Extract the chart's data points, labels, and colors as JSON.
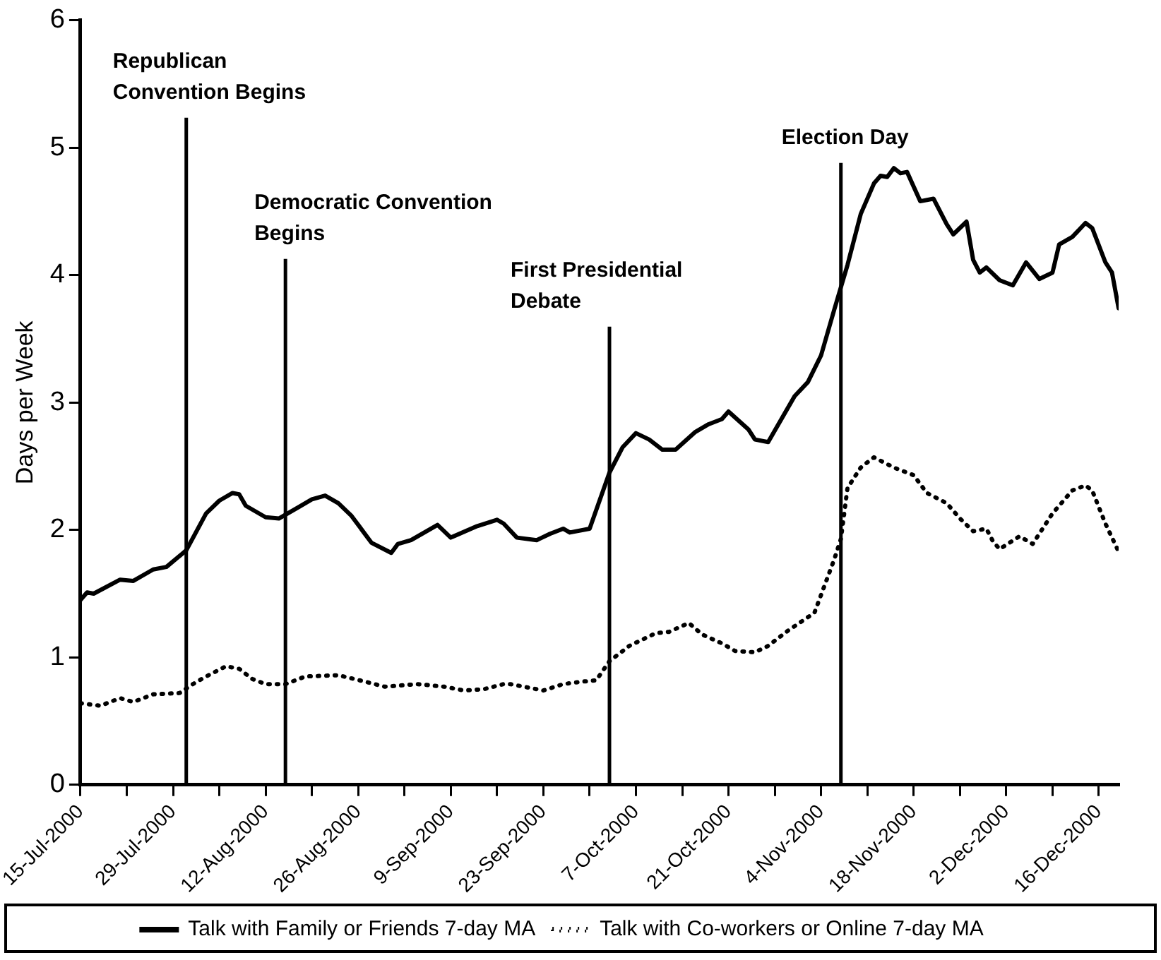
{
  "chart_data": {
    "type": "line",
    "ylabel": "Days per Week",
    "xlim": [
      "2000-07-15",
      "2000-12-19"
    ],
    "ylim": [
      0,
      6
    ],
    "yticks": [
      0,
      1,
      2,
      3,
      4,
      5,
      6
    ],
    "xticks": [
      {
        "value": "2000-07-15",
        "label": "15-Jul-2000"
      },
      {
        "value": "2000-07-22",
        "label": null
      },
      {
        "value": "2000-07-29",
        "label": "29-Jul-2000"
      },
      {
        "value": "2000-08-05",
        "label": null
      },
      {
        "value": "2000-08-12",
        "label": "12-Aug-2000"
      },
      {
        "value": "2000-08-19",
        "label": null
      },
      {
        "value": "2000-08-26",
        "label": "26-Aug-2000"
      },
      {
        "value": "2000-09-02",
        "label": null
      },
      {
        "value": "2000-09-09",
        "label": "9-Sep-2000"
      },
      {
        "value": "2000-09-16",
        "label": null
      },
      {
        "value": "2000-09-23",
        "label": "23-Sep-2000"
      },
      {
        "value": "2000-09-30",
        "label": null
      },
      {
        "value": "2000-10-07",
        "label": "7-Oct-2000"
      },
      {
        "value": "2000-10-14",
        "label": null
      },
      {
        "value": "2000-10-21",
        "label": "21-Oct-2000"
      },
      {
        "value": "2000-10-28",
        "label": null
      },
      {
        "value": "2000-11-04",
        "label": "4-Nov-2000"
      },
      {
        "value": "2000-11-11",
        "label": null
      },
      {
        "value": "2000-11-18",
        "label": "18-Nov-2000"
      },
      {
        "value": "2000-11-25",
        "label": null
      },
      {
        "value": "2000-12-02",
        "label": "2-Dec-2000"
      },
      {
        "value": "2000-12-09",
        "label": null
      },
      {
        "value": "2000-12-16",
        "label": "16-Dec-2000"
      }
    ],
    "grid": false,
    "legend": "bottom",
    "marker": "none",
    "series": [
      {
        "name": "Talk with Family or Friends 7-day MA",
        "color": "#000000",
        "line_style": "solid",
        "x": [
          "2000-07-15",
          "2000-07-16",
          "2000-07-17",
          "2000-07-21",
          "2000-07-23",
          "2000-07-26",
          "2000-07-28",
          "2000-07-31",
          "2000-08-03",
          "2000-08-05",
          "2000-08-07",
          "2000-08-08",
          "2000-08-09",
          "2000-08-12",
          "2000-08-14",
          "2000-08-17",
          "2000-08-19",
          "2000-08-21",
          "2000-08-23",
          "2000-08-25",
          "2000-08-28",
          "2000-08-31",
          "2000-09-01",
          "2000-09-03",
          "2000-09-07",
          "2000-09-09",
          "2000-09-13",
          "2000-09-16",
          "2000-09-17",
          "2000-09-19",
          "2000-09-22",
          "2000-09-24",
          "2000-09-26",
          "2000-09-27",
          "2000-09-30",
          "2000-10-03",
          "2000-10-05",
          "2000-10-07",
          "2000-10-09",
          "2000-10-11",
          "2000-10-13",
          "2000-10-16",
          "2000-10-18",
          "2000-10-20",
          "2000-10-21",
          "2000-10-24",
          "2000-10-25",
          "2000-10-27",
          "2000-10-29",
          "2000-10-31",
          "2000-11-02",
          "2000-11-04",
          "2000-11-06",
          "2000-11-08",
          "2000-11-10",
          "2000-11-12",
          "2000-11-13",
          "2000-11-14",
          "2000-11-15",
          "2000-11-16",
          "2000-11-17",
          "2000-11-19",
          "2000-11-21",
          "2000-11-23",
          "2000-11-24",
          "2000-11-26",
          "2000-11-27",
          "2000-11-28",
          "2000-11-29",
          "2000-12-01",
          "2000-12-03",
          "2000-12-05",
          "2000-12-07",
          "2000-12-09",
          "2000-12-10",
          "2000-12-12",
          "2000-12-14",
          "2000-12-15",
          "2000-12-17",
          "2000-12-18",
          "2000-12-19"
        ],
        "values": [
          1.45,
          1.51,
          1.5,
          1.61,
          1.6,
          1.69,
          1.71,
          1.84,
          2.13,
          2.23,
          2.29,
          2.28,
          2.19,
          2.1,
          2.09,
          2.18,
          2.24,
          2.27,
          2.21,
          2.11,
          1.9,
          1.82,
          1.89,
          1.92,
          2.04,
          1.94,
          2.03,
          2.08,
          2.05,
          1.94,
          1.92,
          1.97,
          2.01,
          1.98,
          2.01,
          2.45,
          2.65,
          2.76,
          2.71,
          2.63,
          2.63,
          2.77,
          2.83,
          2.87,
          2.93,
          2.79,
          2.71,
          2.69,
          2.87,
          3.05,
          3.16,
          3.37,
          3.73,
          4.08,
          4.48,
          4.72,
          4.78,
          4.77,
          4.84,
          4.8,
          4.81,
          4.58,
          4.6,
          4.4,
          4.32,
          4.42,
          4.12,
          4.02,
          4.06,
          3.96,
          3.92,
          4.1,
          3.97,
          4.02,
          4.24,
          4.3,
          4.41,
          4.37,
          4.1,
          4.02,
          3.74
        ]
      },
      {
        "name": "Talk with Co-workers or Online 7-day MA",
        "color": "#000000",
        "line_style": "dotted",
        "x": [
          "2000-07-15",
          "2000-07-18",
          "2000-07-21",
          "2000-07-23",
          "2000-07-26",
          "2000-07-30",
          "2000-08-01",
          "2000-08-03",
          "2000-08-06",
          "2000-08-08",
          "2000-08-10",
          "2000-08-12",
          "2000-08-15",
          "2000-08-18",
          "2000-08-23",
          "2000-08-27",
          "2000-08-30",
          "2000-09-04",
          "2000-09-08",
          "2000-09-11",
          "2000-09-14",
          "2000-09-17",
          "2000-09-18",
          "2000-09-23",
          "2000-09-26",
          "2000-09-29",
          "2000-10-01",
          "2000-10-03",
          "2000-10-06",
          "2000-10-10",
          "2000-10-12",
          "2000-10-15",
          "2000-10-17",
          "2000-10-20",
          "2000-10-22",
          "2000-10-25",
          "2000-10-27",
          "2000-10-30",
          "2000-11-03",
          "2000-11-04",
          "2000-11-06",
          "2000-11-07",
          "2000-11-08",
          "2000-11-10",
          "2000-11-12",
          "2000-11-15",
          "2000-11-18",
          "2000-11-20",
          "2000-11-23",
          "2000-11-25",
          "2000-11-27",
          "2000-11-29",
          "2000-11-30",
          "2000-12-01",
          "2000-12-04",
          "2000-12-06",
          "2000-12-09",
          "2000-12-12",
          "2000-12-14",
          "2000-12-15",
          "2000-12-17",
          "2000-12-19"
        ],
        "values": [
          0.64,
          0.62,
          0.68,
          0.65,
          0.71,
          0.72,
          0.79,
          0.85,
          0.93,
          0.91,
          0.83,
          0.79,
          0.79,
          0.85,
          0.86,
          0.81,
          0.77,
          0.79,
          0.77,
          0.74,
          0.75,
          0.79,
          0.79,
          0.74,
          0.79,
          0.81,
          0.82,
          0.97,
          1.09,
          1.19,
          1.2,
          1.27,
          1.18,
          1.11,
          1.05,
          1.04,
          1.09,
          1.21,
          1.35,
          1.49,
          1.77,
          1.93,
          2.33,
          2.49,
          2.57,
          2.49,
          2.43,
          2.29,
          2.21,
          2.09,
          1.99,
          2.01,
          1.91,
          1.85,
          1.95,
          1.89,
          2.13,
          2.31,
          2.35,
          2.31,
          2.05,
          1.83
        ]
      }
    ],
    "ref_lines": [
      {
        "axis": "x",
        "value": "2000-07-31",
        "label": "Republican Convention Begins"
      },
      {
        "axis": "x",
        "value": "2000-08-15",
        "label": "Democratic Convention Begins"
      },
      {
        "axis": "x",
        "value": "2000-10-03",
        "label": "First Presidential Debate"
      },
      {
        "axis": "x",
        "value": "2000-11-07",
        "label": "Election Day"
      }
    ]
  }
}
